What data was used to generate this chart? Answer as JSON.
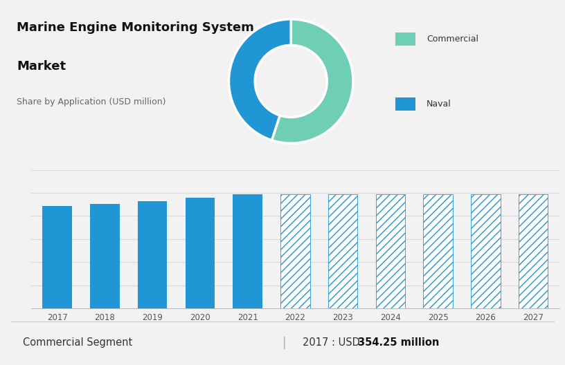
{
  "title_line1": "Marine Engine Monitoring System",
  "title_line2": "Market",
  "subtitle": "Share by Application (USD million)",
  "top_bg_color": "#cdd5de",
  "bottom_bg_color": "#f2f2f2",
  "donut_colors": [
    "#6ecfb5",
    "#2196d4"
  ],
  "donut_labels": [
    "Commercial",
    "Naval"
  ],
  "donut_values": [
    55,
    45
  ],
  "bar_years_solid": [
    2017,
    2018,
    2019,
    2020,
    2021
  ],
  "bar_values_solid": [
    354,
    362,
    372,
    383,
    396
  ],
  "bar_years_hatched": [
    2022,
    2023,
    2024,
    2025,
    2026,
    2027
  ],
  "bar_values_hatched": [
    396,
    396,
    396,
    396,
    396,
    396
  ],
  "bar_color_solid": "#2196d4",
  "bar_color_hatched": "#2196d4",
  "hatch_pattern": "///",
  "footer_left": "Commercial Segment",
  "footer_sep": "|",
  "footer_right_prefix": "2017 : USD ",
  "footer_right_bold": "354.25 million",
  "ylim": [
    0,
    480
  ],
  "grid_color": "#d8d8d8",
  "grid_lines": 6
}
